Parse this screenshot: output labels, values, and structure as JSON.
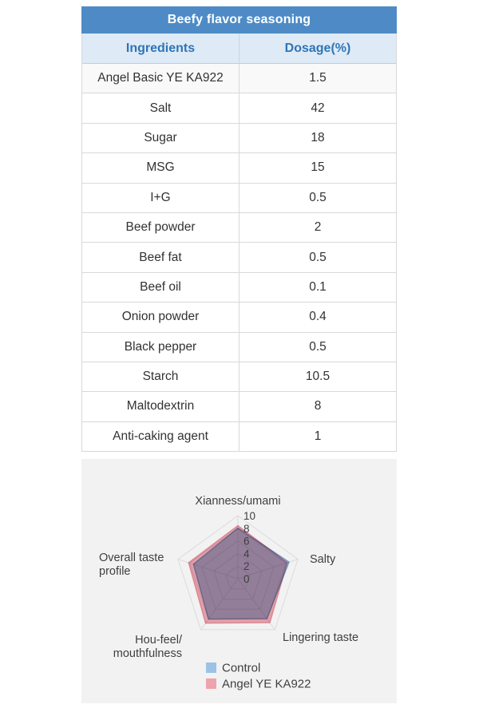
{
  "table": {
    "title": "Beefy flavor seasoning",
    "columns": [
      "Ingredients",
      "Dosage(%)"
    ],
    "rows": [
      [
        "Angel Basic YE KA922",
        "1.5"
      ],
      [
        "Salt",
        "42"
      ],
      [
        "Sugar",
        "18"
      ],
      [
        "MSG",
        "15"
      ],
      [
        "I+G",
        "0.5"
      ],
      [
        "Beef powder",
        "2"
      ],
      [
        "Beef fat",
        "0.5"
      ],
      [
        "Beef oil",
        "0.1"
      ],
      [
        "Onion powder",
        "0.4"
      ],
      [
        "Black pepper",
        "0.5"
      ],
      [
        "Starch",
        "10.5"
      ],
      [
        "Maltodextrin",
        "8"
      ],
      [
        "Anti-caking agent",
        "1"
      ]
    ]
  },
  "chart_data": {
    "type": "radar",
    "categories": [
      "Xianness/umami",
      "Salty",
      "Lingering taste",
      "Hou-feel/mouthfulness",
      "Overall taste profile"
    ],
    "axis_label_lines": [
      [
        "Xianness/umami"
      ],
      [
        "Salty"
      ],
      [
        "Lingering taste"
      ],
      [
        "Hou-feel/",
        "mouthfulness"
      ],
      [
        "Overall taste",
        "profile"
      ]
    ],
    "rmin": 0,
    "rmax": 10,
    "ticks": [
      0,
      2,
      4,
      6,
      8,
      10
    ],
    "grid": true,
    "legend_position": "bottom-center",
    "series": [
      {
        "name": "Control",
        "values": [
          8.0,
          8.5,
          7.8,
          7.9,
          7.4
        ],
        "color": "#9CC2E5",
        "stroke": "#7EA6D0"
      },
      {
        "name": "Angel YE KA922",
        "values": [
          8.4,
          8.2,
          8.6,
          8.7,
          8.2
        ],
        "color": "#EFA3AC",
        "stroke": "#E78F9D"
      }
    ]
  },
  "colors": {
    "table_title_bg": "#4E8BC6",
    "table_title_text": "#FFFFFF",
    "table_header_bg": "#DEEAF6",
    "table_header_text": "#2E75B6",
    "table_border": "#D9D9D9",
    "chart_bg": "#F2F2F2",
    "chart_text": "#3F3F3F"
  }
}
